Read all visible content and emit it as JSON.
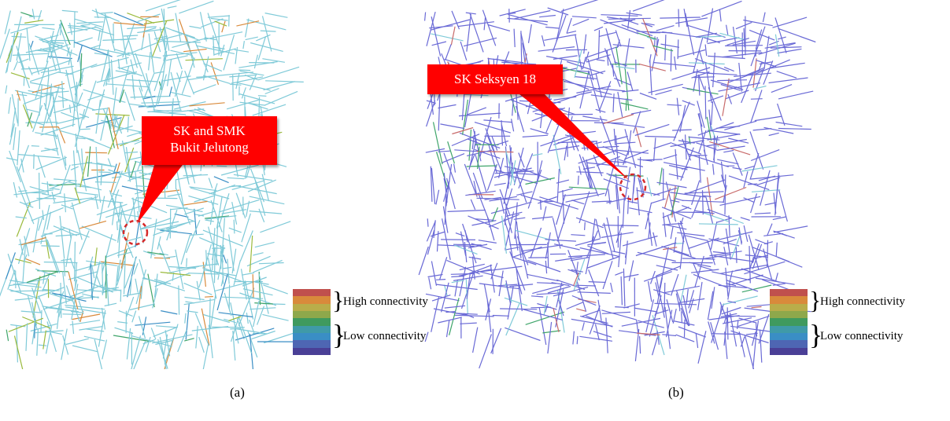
{
  "panels": [
    {
      "id": "a",
      "callout": [
        "SK and SMK",
        "Bukit Jelutong"
      ],
      "caption": "(a)"
    },
    {
      "id": "b",
      "callout": [
        "SK Seksyen 18"
      ],
      "caption": "(b)"
    }
  ],
  "legend": {
    "high_label": "High connectivity",
    "low_label": "Low connectivity",
    "bands": [
      "#c0504d",
      "#d98a3b",
      "#b9ad4a",
      "#8ea84b",
      "#3f9a5e",
      "#3f9aa8",
      "#3a8ec5",
      "#4e66b3",
      "#4a3f96"
    ]
  },
  "colors": {
    "callout": "#ff0000",
    "marker": "#d62a2a",
    "network_a": "#7fcad8",
    "network_b": "#6a6ad6"
  }
}
